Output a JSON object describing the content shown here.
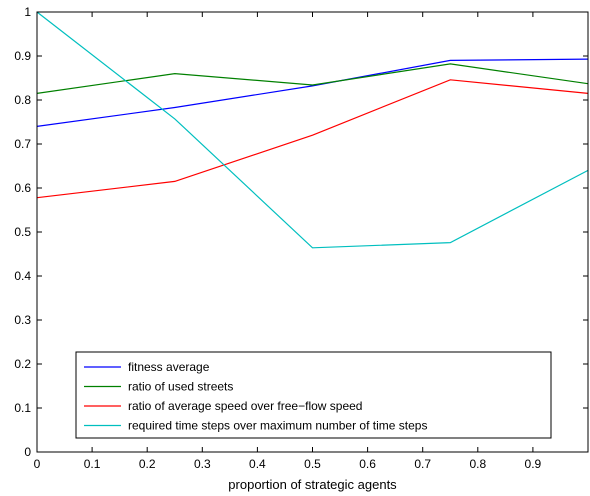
{
  "chart_data": {
    "type": "line",
    "xlabel": "proportion of strategic agents",
    "ylabel": "",
    "title": "",
    "xlim": [
      0,
      1
    ],
    "ylim": [
      0,
      1
    ],
    "xticks": [
      0,
      0.1,
      0.2,
      0.3,
      0.4,
      0.5,
      0.6,
      0.7,
      0.8,
      0.9
    ],
    "xtick_labels": [
      "0",
      "0.1",
      "0.2",
      "0.3",
      "0.4",
      "0.5",
      "0.6",
      "0.7",
      "0.8",
      "0.9"
    ],
    "yticks": [
      0,
      0.1,
      0.2,
      0.3,
      0.4,
      0.5,
      0.6,
      0.7,
      0.8,
      0.9,
      1
    ],
    "ytick_labels": [
      "0",
      "0.1",
      "0.2",
      "0.3",
      "0.4",
      "0.5",
      "0.6",
      "0.7",
      "0.8",
      "0.9",
      "1"
    ],
    "grid": false,
    "legend_position": "bottom-center",
    "series": [
      {
        "name": "fitness average",
        "color": "#0000ff",
        "x": [
          0,
          0.25,
          0.5,
          0.75,
          1
        ],
        "y": [
          0.74,
          0.783,
          0.832,
          0.89,
          0.893
        ]
      },
      {
        "name": "ratio of used streets",
        "color": "#008000",
        "x": [
          0,
          0.25,
          0.5,
          0.75,
          1
        ],
        "y": [
          0.815,
          0.86,
          0.834,
          0.882,
          0.837
        ]
      },
      {
        "name": "ratio of average speed over free−flow speed",
        "color": "#ff0000",
        "x": [
          0,
          0.25,
          0.5,
          0.75,
          1
        ],
        "y": [
          0.578,
          0.615,
          0.72,
          0.846,
          0.815
        ]
      },
      {
        "name": "required time steps over maximum number of time steps",
        "color": "#00bfbf",
        "x": [
          0,
          0.25,
          0.5,
          0.75,
          1
        ],
        "y": [
          1.0,
          0.757,
          0.464,
          0.476,
          0.64
        ]
      }
    ]
  }
}
